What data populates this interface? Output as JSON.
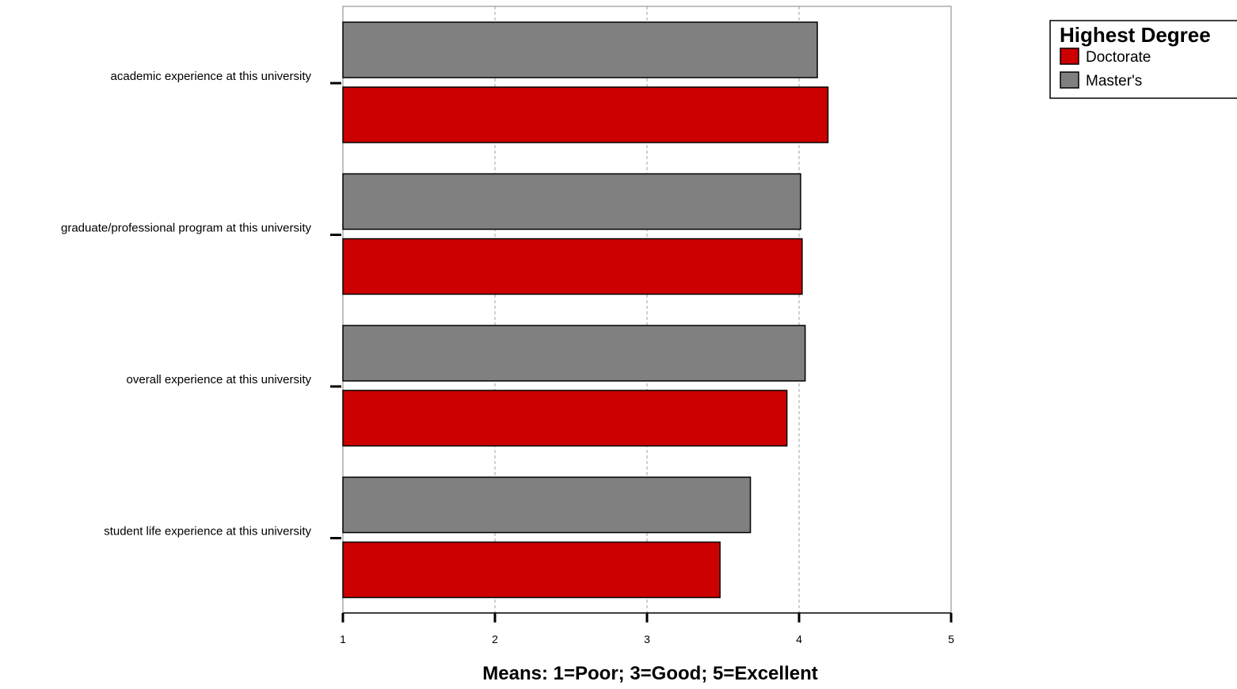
{
  "chart_data": {
    "type": "bar",
    "orientation": "horizontal",
    "categories": [
      "academic experience at this university",
      "graduate/professional program at this university",
      "overall experience at this university",
      "student life experience at this university"
    ],
    "series": [
      {
        "name": "Master's",
        "color": "#808080",
        "values": [
          4.12,
          4.01,
          4.04,
          3.68
        ]
      },
      {
        "name": "Doctorate",
        "color": "#CC0000",
        "values": [
          4.19,
          4.02,
          3.92,
          3.48
        ]
      }
    ],
    "xlabel": "Means: 1=Poor; 3=Good; 5=Excellent",
    "xlim": [
      1,
      5
    ],
    "xticks": [
      1,
      2,
      3,
      4,
      5
    ],
    "grid": true,
    "legend": {
      "title": "Highest Degree",
      "placement": "top-right",
      "entries": [
        {
          "label": "Doctorate",
          "color": "#CC0000"
        },
        {
          "label": "Master's",
          "color": "#808080"
        }
      ]
    }
  }
}
